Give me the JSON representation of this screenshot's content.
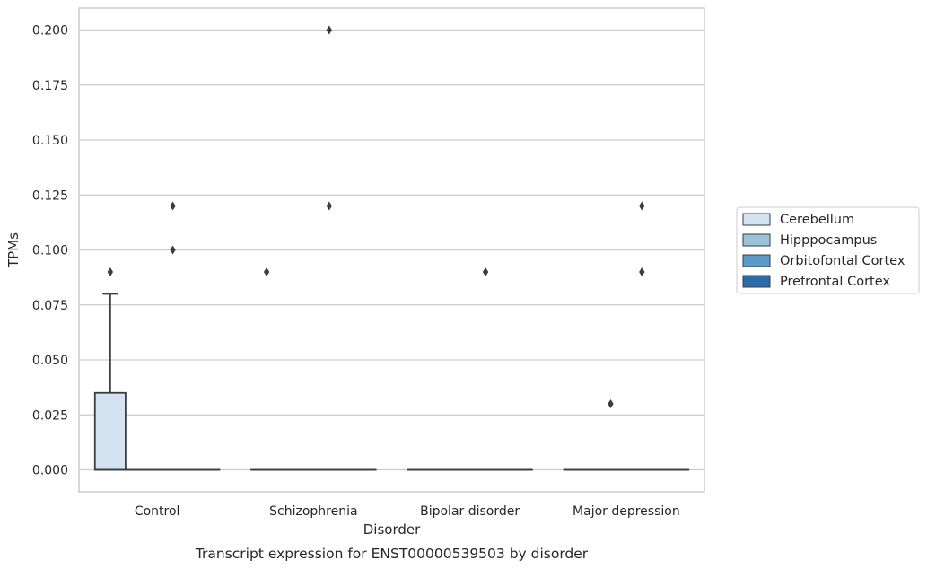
{
  "chart_data": {
    "type": "box",
    "title": "Transcript expression for ENST00000539503 by disorder",
    "xlabel": "Disorder",
    "ylabel": "TPMs",
    "categories": [
      "Control",
      "Schizophrenia",
      "Bipolar disorder",
      "Major depression"
    ],
    "ylim": [
      -0.01,
      0.21
    ],
    "yticks": [
      0.0,
      0.025,
      0.05,
      0.075,
      0.1,
      0.125,
      0.15,
      0.175,
      0.2
    ],
    "ytick_labels": [
      "0.000",
      "0.025",
      "0.050",
      "0.075",
      "0.100",
      "0.125",
      "0.150",
      "0.175",
      "0.200"
    ],
    "grid": true,
    "legend_position": "right",
    "series": [
      {
        "name": "Cerebellum",
        "color": "#d4e3f2",
        "boxes": [
          {
            "q1": 0.0,
            "median": 0.0,
            "q3": 0.035,
            "whisker_low": 0.0,
            "whisker_high": 0.08,
            "outliers": [
              0.09
            ]
          },
          {
            "q1": 0.0,
            "median": 0.0,
            "q3": 0.0,
            "whisker_low": 0.0,
            "whisker_high": 0.0,
            "outliers": [
              0.09
            ]
          },
          {
            "q1": 0.0,
            "median": 0.0,
            "q3": 0.0,
            "whisker_low": 0.0,
            "whisker_high": 0.0,
            "outliers": []
          },
          {
            "q1": 0.0,
            "median": 0.0,
            "q3": 0.0,
            "whisker_low": 0.0,
            "whisker_high": 0.0,
            "outliers": []
          }
        ]
      },
      {
        "name": "Hipppocampus",
        "color": "#9cc3dc",
        "boxes": [
          {
            "q1": 0.0,
            "median": 0.0,
            "q3": 0.0,
            "whisker_low": 0.0,
            "whisker_high": 0.0,
            "outliers": []
          },
          {
            "q1": 0.0,
            "median": 0.0,
            "q3": 0.0,
            "whisker_low": 0.0,
            "whisker_high": 0.0,
            "outliers": []
          },
          {
            "q1": 0.0,
            "median": 0.0,
            "q3": 0.0,
            "whisker_low": 0.0,
            "whisker_high": 0.0,
            "outliers": []
          },
          {
            "q1": 0.0,
            "median": 0.0,
            "q3": 0.0,
            "whisker_low": 0.0,
            "whisker_high": 0.0,
            "outliers": [
              0.03
            ]
          }
        ]
      },
      {
        "name": "Orbitofontal Cortex",
        "color": "#5b9ac9",
        "boxes": [
          {
            "q1": 0.0,
            "median": 0.0,
            "q3": 0.0,
            "whisker_low": 0.0,
            "whisker_high": 0.0,
            "outliers": [
              0.12,
              0.1
            ]
          },
          {
            "q1": 0.0,
            "median": 0.0,
            "q3": 0.0,
            "whisker_low": 0.0,
            "whisker_high": 0.0,
            "outliers": [
              0.2,
              0.12
            ]
          },
          {
            "q1": 0.0,
            "median": 0.0,
            "q3": 0.0,
            "whisker_low": 0.0,
            "whisker_high": 0.0,
            "outliers": [
              0.09
            ]
          },
          {
            "q1": 0.0,
            "median": 0.0,
            "q3": 0.0,
            "whisker_low": 0.0,
            "whisker_high": 0.0,
            "outliers": [
              0.12,
              0.09
            ]
          }
        ]
      },
      {
        "name": "Prefrontal Cortex",
        "color": "#2a6ba8",
        "boxes": [
          {
            "q1": 0.0,
            "median": 0.0,
            "q3": 0.0,
            "whisker_low": 0.0,
            "whisker_high": 0.0,
            "outliers": []
          },
          {
            "q1": 0.0,
            "median": 0.0,
            "q3": 0.0,
            "whisker_low": 0.0,
            "whisker_high": 0.0,
            "outliers": []
          },
          {
            "q1": 0.0,
            "median": 0.0,
            "q3": 0.0,
            "whisker_low": 0.0,
            "whisker_high": 0.0,
            "outliers": []
          },
          {
            "q1": 0.0,
            "median": 0.0,
            "q3": 0.0,
            "whisker_low": 0.0,
            "whisker_high": 0.0,
            "outliers": []
          }
        ]
      }
    ]
  }
}
